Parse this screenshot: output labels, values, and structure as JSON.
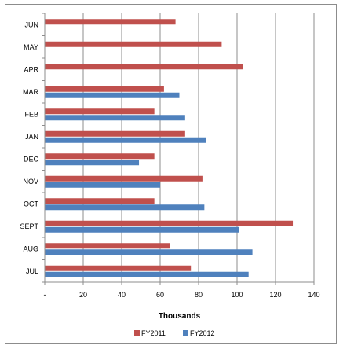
{
  "chart_data": {
    "type": "bar",
    "orientation": "horizontal",
    "categories": [
      "JUL",
      "AUG",
      "SEPT",
      "OCT",
      "NOV",
      "DEC",
      "JAN",
      "FEB",
      "MAR",
      "APR",
      "MAY",
      "JUN"
    ],
    "series": [
      {
        "name": "FY2011",
        "color": "#c0504d",
        "values": [
          76,
          65,
          129,
          57,
          82,
          57,
          73,
          57,
          62,
          103,
          92,
          68
        ]
      },
      {
        "name": "FY2012",
        "color": "#4f81bd",
        "values": [
          106,
          108,
          101,
          83,
          60,
          49,
          84,
          73,
          70,
          null,
          null,
          null
        ]
      }
    ],
    "xlabel": "Thousands",
    "xlim": [
      0,
      140
    ],
    "x_ticks": [
      0,
      20,
      40,
      60,
      80,
      100,
      120,
      140
    ],
    "x_tick_labels": [
      "-",
      "20",
      "40",
      "60",
      "80",
      "100",
      "120",
      "140"
    ],
    "grid": "vertical",
    "legend": "bottom"
  }
}
